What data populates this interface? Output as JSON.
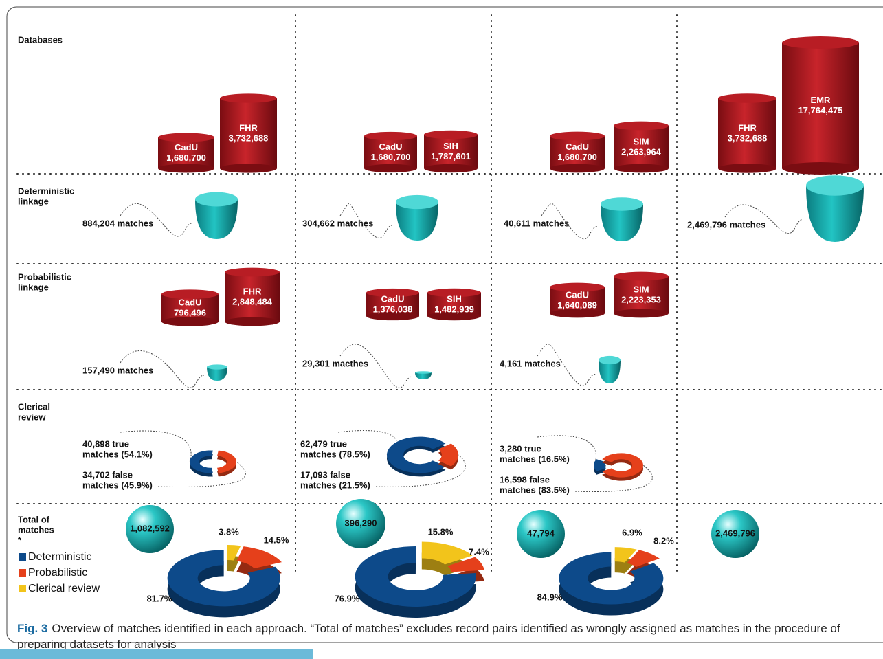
{
  "rows": [
    [
      "Databases"
    ],
    [
      "Deterministic",
      "linkage"
    ],
    [
      "Probabilistic",
      "linkage"
    ],
    [
      "Clerical",
      "review"
    ],
    [
      "Total of",
      "matches",
      "*"
    ]
  ],
  "legend": [
    {
      "name": "Deterministic",
      "color": "#0d4a8a"
    },
    {
      "name": "Probabilistic",
      "color": "#e5401b"
    },
    {
      "name": "Clerical review",
      "color": "#f2c41b"
    }
  ],
  "columns": [
    {
      "databases": [
        {
          "name": "CadU",
          "count": "1,680,700"
        },
        {
          "name": "FHR",
          "count": "3,732,688"
        }
      ],
      "deterministic": "884,204 matches",
      "probabilistic": {
        "databases": [
          {
            "name": "CadU",
            "count": "796,496"
          },
          {
            "name": "FHR",
            "count": "2,848,484"
          }
        ],
        "matches": "157,490 matches"
      },
      "clerical": {
        "true": {
          "label": [
            "40,898 true",
            "matches (54.1%)"
          ],
          "value": 54.1
        },
        "false": {
          "label": [
            "34,702 false",
            "matches (45.9%)"
          ],
          "value": 45.9
        }
      },
      "total": {
        "count": "1,082,592",
        "segments": [
          {
            "value": 81.7,
            "label": "81.7%"
          },
          {
            "value": 14.5,
            "label": "14.5%"
          },
          {
            "value": 3.8,
            "label": "3.8%"
          }
        ]
      }
    },
    {
      "databases": [
        {
          "name": "CadU",
          "count": "1,680,700"
        },
        {
          "name": "SIH",
          "count": "1,787,601"
        }
      ],
      "deterministic": "304,662 matches",
      "probabilistic": {
        "databases": [
          {
            "name": "CadU",
            "count": "1,376,038"
          },
          {
            "name": "SIH",
            "count": "1,482,939"
          }
        ],
        "matches": "29,301 macthes"
      },
      "clerical": {
        "true": {
          "label": [
            "62,479 true",
            "matches (78.5%)"
          ],
          "value": 78.5
        },
        "false": {
          "label": [
            "17,093 false",
            "matches (21.5%)"
          ],
          "value": 21.5
        }
      },
      "total": {
        "count": "396,290",
        "segments": [
          {
            "value": 76.9,
            "label": "76.9%"
          },
          {
            "value": 7.4,
            "label": "7.4%"
          },
          {
            "value": 15.8,
            "label": "15.8%"
          }
        ]
      }
    },
    {
      "databases": [
        {
          "name": "CadU",
          "count": "1,680,700"
        },
        {
          "name": "SIM",
          "count": "2,263,964"
        }
      ],
      "deterministic": "40,611 matches",
      "probabilistic": {
        "databases": [
          {
            "name": "CadU",
            "count": "1,640,089"
          },
          {
            "name": "SIM",
            "count": "2,223,353"
          }
        ],
        "matches": "4,161 matches"
      },
      "clerical": {
        "true": {
          "label": [
            "3,280 true",
            "matches (16.5%)"
          ],
          "value": 16.5
        },
        "false": {
          "label": [
            "16,598 false",
            "matches (83.5%)"
          ],
          "value": 83.5
        }
      },
      "total": {
        "count": "47,794",
        "segments": [
          {
            "value": 84.9,
            "label": "84.9%"
          },
          {
            "value": 8.2,
            "label": "8.2%"
          },
          {
            "value": 6.9,
            "label": "6.9%"
          }
        ]
      }
    },
    {
      "databases": [
        {
          "name": "FHR",
          "count": "3,732,688"
        },
        {
          "name": "EMR",
          "count": "17,764,475"
        }
      ],
      "deterministic": "2,469,796 matches",
      "total": {
        "count": "2,469,796"
      }
    }
  ],
  "caption": {
    "prefix": "Fig. 3",
    "text": "Overview of matches identified in each approach. “Total of matches” excludes record pairs identified as wrongly assigned as matches in the procedure of preparing datasets for analysis"
  }
}
